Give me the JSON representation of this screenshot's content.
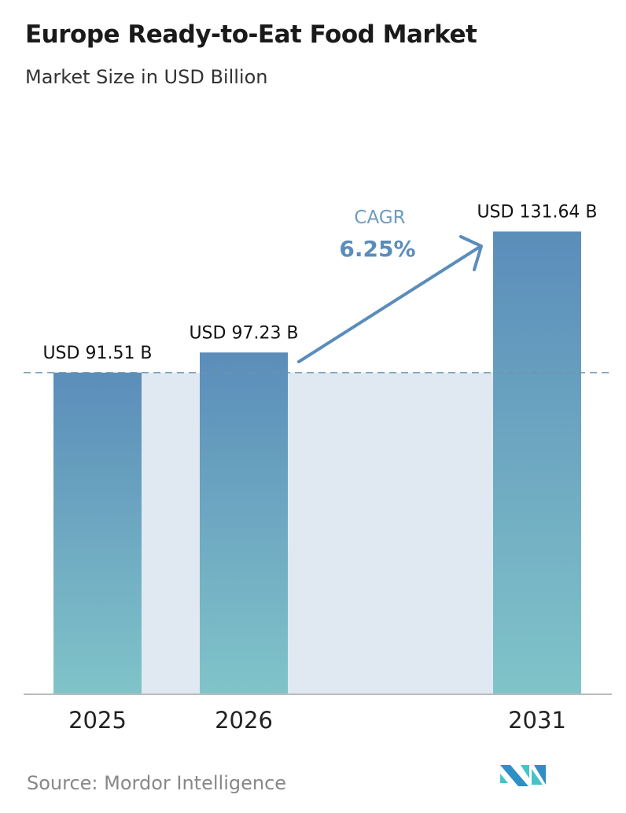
{
  "chart_data": {
    "type": "bar",
    "title": "Europe Ready-to-Eat Food Market",
    "subtitle": "Market Size in USD Billion",
    "categories": [
      "2025",
      "2026",
      "2031"
    ],
    "values": [
      91.51,
      97.23,
      131.64
    ],
    "data_labels": [
      "USD 91.51 B",
      "USD 97.23 B",
      "USD 131.64 B"
    ],
    "ylim": [
      0,
      197.5
    ],
    "grid": false,
    "annotation": {
      "label": "CAGR",
      "value": "6.25%"
    },
    "colors": {
      "bar_top": "#5b8dba",
      "bar_bottom": "#80c4c9",
      "shade": "#e0e9f1",
      "arrow": "#5b8dba",
      "dashed": "#6f93ad"
    }
  },
  "source": "Source:  Mordor Intelligence",
  "logo": {
    "colors": [
      "#2f8fc4",
      "#45c3c8"
    ]
  }
}
